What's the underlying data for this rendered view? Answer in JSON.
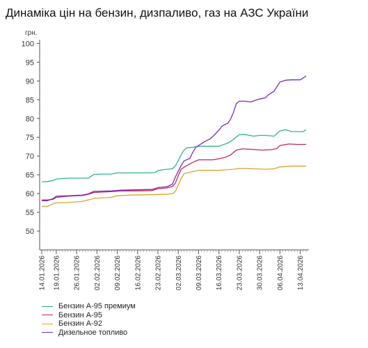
{
  "title": "Динаміка цін на бензин, дизпаливо, газ на АЗС України",
  "chart_data": {
    "type": "line",
    "title": "Динаміка цін на бензин, дизпаливо, газ на АЗС України",
    "ylabel": "грн.",
    "xlabel": "",
    "ylim": [
      45,
      101
    ],
    "yticks": [
      50,
      55,
      60,
      65,
      70,
      75,
      80,
      85,
      90,
      95,
      100
    ],
    "xlim": [
      "2026-01-14",
      "2026-04-15"
    ],
    "xticks": [
      "14.01.2026",
      "19.01.2026",
      "26.01.2026",
      "02.02.2026",
      "09.02.2026",
      "16.02.2026",
      "23.02.2026",
      "02.03.2026",
      "09.03.2026",
      "16.03.2026",
      "23.03.2026",
      "30.03.2026",
      "06.04.2026",
      "13.04.2026"
    ],
    "grid": false,
    "legend_position": "bottom-left",
    "series": [
      {
        "name": "Бензин А-95 премиум",
        "color": "#2fb28a",
        "points": [
          [
            "2026-01-14",
            63.1
          ],
          [
            "2026-01-16",
            63.2
          ],
          [
            "2026-01-18",
            63.5
          ],
          [
            "2026-01-19",
            63.9
          ],
          [
            "2026-01-23",
            64.1
          ],
          [
            "2026-01-30",
            64.1
          ],
          [
            "2026-02-01",
            65.1
          ],
          [
            "2026-02-04",
            65.2
          ],
          [
            "2026-02-07",
            65.2
          ],
          [
            "2026-02-09",
            65.5
          ],
          [
            "2026-02-13",
            65.5
          ],
          [
            "2026-02-20",
            65.5
          ],
          [
            "2026-02-22",
            65.6
          ],
          [
            "2026-02-23",
            66.1
          ],
          [
            "2026-02-25",
            66.4
          ],
          [
            "2026-02-28",
            66.6
          ],
          [
            "2026-03-01",
            67.4
          ],
          [
            "2026-03-02",
            68.8
          ],
          [
            "2026-03-03",
            70.3
          ],
          [
            "2026-03-04",
            71.6
          ],
          [
            "2026-03-05",
            72.2
          ],
          [
            "2026-03-07",
            72.3
          ],
          [
            "2026-03-09",
            72.6
          ],
          [
            "2026-03-16",
            72.6
          ],
          [
            "2026-03-17",
            72.9
          ],
          [
            "2026-03-19",
            73.4
          ],
          [
            "2026-03-21",
            74.4
          ],
          [
            "2026-03-23",
            75.7
          ],
          [
            "2026-03-25",
            75.7
          ],
          [
            "2026-03-28",
            75.3
          ],
          [
            "2026-03-30",
            75.5
          ],
          [
            "2026-04-01",
            75.5
          ],
          [
            "2026-04-04",
            75.3
          ],
          [
            "2026-04-06",
            76.7
          ],
          [
            "2026-04-08",
            77.0
          ],
          [
            "2026-04-10",
            76.5
          ],
          [
            "2026-04-14",
            76.5
          ],
          [
            "2026-04-15",
            77.0
          ]
        ]
      },
      {
        "name": "Бензин А-95",
        "color": "#c1255f",
        "points": [
          [
            "2026-01-14",
            58.3
          ],
          [
            "2026-01-16",
            58.3
          ],
          [
            "2026-01-18",
            58.5
          ],
          [
            "2026-01-19",
            59.0
          ],
          [
            "2026-01-23",
            59.3
          ],
          [
            "2026-01-28",
            59.5
          ],
          [
            "2026-01-30",
            59.8
          ],
          [
            "2026-02-01",
            60.3
          ],
          [
            "2026-02-07",
            60.5
          ],
          [
            "2026-02-10",
            60.7
          ],
          [
            "2026-02-15",
            60.7
          ],
          [
            "2026-02-21",
            60.8
          ],
          [
            "2026-02-23",
            61.3
          ],
          [
            "2026-02-26",
            61.5
          ],
          [
            "2026-02-28",
            61.9
          ],
          [
            "2026-03-01",
            62.8
          ],
          [
            "2026-03-02",
            64.8
          ],
          [
            "2026-03-03",
            66.5
          ],
          [
            "2026-03-05",
            67.5
          ],
          [
            "2026-03-07",
            68.3
          ],
          [
            "2026-03-09",
            69.0
          ],
          [
            "2026-03-14",
            69.0
          ],
          [
            "2026-03-16",
            69.3
          ],
          [
            "2026-03-18",
            69.6
          ],
          [
            "2026-03-20",
            70.3
          ],
          [
            "2026-03-22",
            71.6
          ],
          [
            "2026-03-24",
            71.9
          ],
          [
            "2026-03-27",
            71.8
          ],
          [
            "2026-03-31",
            71.6
          ],
          [
            "2026-04-03",
            71.7
          ],
          [
            "2026-04-05",
            72.0
          ],
          [
            "2026-04-06",
            72.8
          ],
          [
            "2026-04-09",
            73.2
          ],
          [
            "2026-04-12",
            73.1
          ],
          [
            "2026-04-15",
            73.1
          ]
        ]
      },
      {
        "name": "Бензин А-92",
        "color": "#d9a42c",
        "points": [
          [
            "2026-01-14",
            56.6
          ],
          [
            "2026-01-16",
            56.6
          ],
          [
            "2026-01-18",
            57.3
          ],
          [
            "2026-01-19",
            57.5
          ],
          [
            "2026-01-23",
            57.6
          ],
          [
            "2026-01-28",
            57.9
          ],
          [
            "2026-01-30",
            58.3
          ],
          [
            "2026-02-01",
            58.7
          ],
          [
            "2026-02-07",
            59.0
          ],
          [
            "2026-02-09",
            59.4
          ],
          [
            "2026-02-13",
            59.6
          ],
          [
            "2026-02-20",
            59.7
          ],
          [
            "2026-02-26",
            59.8
          ],
          [
            "2026-02-28",
            60.0
          ],
          [
            "2026-03-01",
            60.6
          ],
          [
            "2026-03-02",
            62.3
          ],
          [
            "2026-03-03",
            64.0
          ],
          [
            "2026-03-04",
            65.3
          ],
          [
            "2026-03-06",
            65.7
          ],
          [
            "2026-03-09",
            66.2
          ],
          [
            "2026-03-14",
            66.2
          ],
          [
            "2026-03-16",
            66.2
          ],
          [
            "2026-03-18",
            66.3
          ],
          [
            "2026-03-21",
            66.5
          ],
          [
            "2026-03-23",
            66.7
          ],
          [
            "2026-03-28",
            66.6
          ],
          [
            "2026-04-01",
            66.5
          ],
          [
            "2026-04-04",
            66.6
          ],
          [
            "2026-04-06",
            67.1
          ],
          [
            "2026-04-10",
            67.3
          ],
          [
            "2026-04-15",
            67.3
          ]
        ]
      },
      {
        "name": "Дизельное топливо",
        "color": "#7b2bb5",
        "points": [
          [
            "2026-01-14",
            58.1
          ],
          [
            "2026-01-16",
            58.1
          ],
          [
            "2026-01-18",
            58.7
          ],
          [
            "2026-01-19",
            59.3
          ],
          [
            "2026-01-23",
            59.4
          ],
          [
            "2026-01-28",
            59.6
          ],
          [
            "2026-01-30",
            59.9
          ],
          [
            "2026-02-01",
            60.6
          ],
          [
            "2026-02-07",
            60.7
          ],
          [
            "2026-02-10",
            60.9
          ],
          [
            "2026-02-15",
            61.0
          ],
          [
            "2026-02-21",
            61.1
          ],
          [
            "2026-02-23",
            61.6
          ],
          [
            "2026-02-26",
            61.8
          ],
          [
            "2026-02-28",
            62.5
          ],
          [
            "2026-03-01",
            64.4
          ],
          [
            "2026-03-02",
            66.0
          ],
          [
            "2026-03-03",
            67.5
          ],
          [
            "2026-03-04",
            68.7
          ],
          [
            "2026-03-06",
            69.4
          ],
          [
            "2026-03-07",
            71.0
          ],
          [
            "2026-03-08",
            72.3
          ],
          [
            "2026-03-09",
            72.8
          ],
          [
            "2026-03-11",
            73.8
          ],
          [
            "2026-03-13",
            74.6
          ],
          [
            "2026-03-14",
            75.3
          ],
          [
            "2026-03-16",
            76.9
          ],
          [
            "2026-03-17",
            77.9
          ],
          [
            "2026-03-18",
            78.4
          ],
          [
            "2026-03-19",
            78.7
          ],
          [
            "2026-03-20",
            79.8
          ],
          [
            "2026-03-21",
            81.6
          ],
          [
            "2026-03-22",
            84.0
          ],
          [
            "2026-03-23",
            84.6
          ],
          [
            "2026-03-25",
            84.6
          ],
          [
            "2026-03-27",
            84.4
          ],
          [
            "2026-03-28",
            84.7
          ],
          [
            "2026-03-30",
            85.2
          ],
          [
            "2026-04-01",
            85.5
          ],
          [
            "2026-04-02",
            86.3
          ],
          [
            "2026-04-04",
            87.3
          ],
          [
            "2026-04-05",
            88.5
          ],
          [
            "2026-04-06",
            89.7
          ],
          [
            "2026-04-08",
            90.2
          ],
          [
            "2026-04-10",
            90.3
          ],
          [
            "2026-04-13",
            90.3
          ],
          [
            "2026-04-15",
            91.3
          ]
        ]
      }
    ]
  }
}
